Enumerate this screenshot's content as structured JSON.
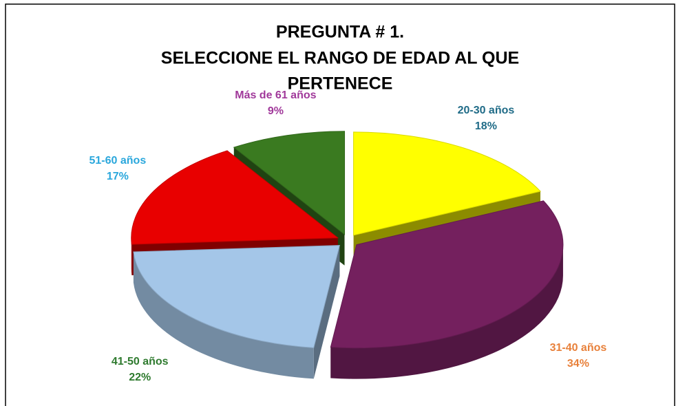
{
  "chart_data": {
    "type": "pie3d",
    "title_lines": [
      "PREGUNTA # 1.",
      "SELECCIONE EL RANGO DE EDAD AL QUE",
      "PERTENECE"
    ],
    "categories": [
      "20-30 años",
      "31-40 años",
      "41-50 años",
      "51-60 años",
      "Más de 61 años"
    ],
    "values": [
      18,
      34,
      22,
      17,
      9
    ],
    "value_labels": [
      "18%",
      "34%",
      "22%",
      "17%",
      "9%"
    ],
    "colors": [
      "#ffff00",
      "#74205e",
      "#a4c6e8",
      "#e80000",
      "#3a7a20"
    ],
    "label_colors": [
      "#1f6b87",
      "#e8803a",
      "#2e7a2e",
      "#2aa7dc",
      "#a0389a"
    ]
  }
}
